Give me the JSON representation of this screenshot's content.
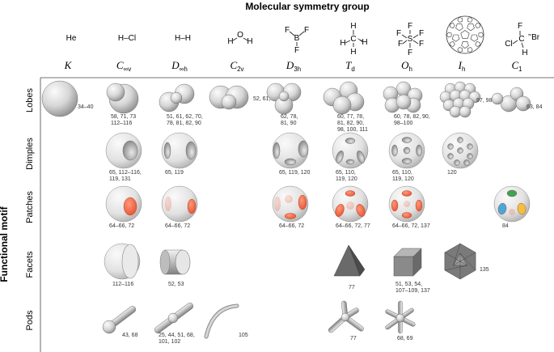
{
  "title": "Molecular symmetry group",
  "y_axis_label": "Functional motif",
  "molecules": [
    {
      "id": "K",
      "formula": "He"
    },
    {
      "id": "Cinfv",
      "formula": "H–Cl"
    },
    {
      "id": "Dinfh",
      "formula": "H–H"
    },
    {
      "id": "C2v",
      "formula": "H2O",
      "atoms": [
        "O",
        "H",
        "H"
      ]
    },
    {
      "id": "D3h",
      "formula": "BF3",
      "atoms": [
        "F",
        "B",
        "F",
        "F"
      ]
    },
    {
      "id": "Td",
      "formula": "CH4",
      "atoms": [
        "C",
        "H",
        "H",
        "H",
        "H"
      ]
    },
    {
      "id": "Oh",
      "formula": "SF6",
      "atoms": [
        "S",
        "F",
        "F",
        "F",
        "F",
        "F",
        "F"
      ]
    },
    {
      "id": "Ih",
      "formula": "C60"
    },
    {
      "id": "C1",
      "formula": "CHFClBr",
      "atoms": [
        "C",
        "F",
        "Cl",
        "Br",
        "H"
      ]
    }
  ],
  "groups": [
    {
      "main": "K",
      "sub": ""
    },
    {
      "main": "C",
      "sub": "∞v"
    },
    {
      "main": "D",
      "sub": "∞h"
    },
    {
      "main": "C",
      "sub": "2v"
    },
    {
      "main": "D",
      "sub": "3h"
    },
    {
      "main": "T",
      "sub": "d"
    },
    {
      "main": "O",
      "sub": "h"
    },
    {
      "main": "I",
      "sub": "h"
    },
    {
      "main": "C",
      "sub": "1"
    }
  ],
  "rows": [
    "Lobes",
    "Dimples",
    "Patches",
    "Facets",
    "Pods"
  ],
  "cells": [
    {
      "row": 0,
      "col": 0,
      "motif": "lobes-single",
      "refs": [
        "34–40"
      ]
    },
    {
      "row": 0,
      "col": 1,
      "motif": "lobes-cinfv",
      "refs": [
        "58, 71, 73",
        "112–116"
      ]
    },
    {
      "row": 0,
      "col": 2,
      "motif": "lobes-dinfh",
      "refs": [
        "51, 61, 62, 70,",
        "78, 81, 82, 90"
      ]
    },
    {
      "row": 0,
      "col": 3,
      "motif": "lobes-c2v",
      "refs": [
        "52, 61, 73"
      ]
    },
    {
      "row": 0,
      "col": 4,
      "motif": "lobes-d3h",
      "refs": [
        "62, 78,",
        "81, 90"
      ]
    },
    {
      "row": 0,
      "col": 5,
      "motif": "lobes-td",
      "refs": [
        "60, 77, 78,",
        "81, 82, 90,",
        "98, 100, 111"
      ]
    },
    {
      "row": 0,
      "col": 6,
      "motif": "lobes-oh",
      "refs": [
        "60, 78, 82, 90,",
        "98–100"
      ]
    },
    {
      "row": 0,
      "col": 7,
      "motif": "lobes-ih",
      "refs": [
        "97, 98"
      ]
    },
    {
      "row": 0,
      "col": 8,
      "motif": "lobes-c1",
      "refs": [
        "63, 84"
      ]
    },
    {
      "row": 1,
      "col": 1,
      "motif": "dimples-cinfv",
      "refs": [
        "65, 112–116,",
        "119, 131"
      ]
    },
    {
      "row": 1,
      "col": 2,
      "motif": "dimples-dinfh",
      "refs": [
        "65, 119"
      ]
    },
    {
      "row": 1,
      "col": 4,
      "motif": "dimples-d3h",
      "refs": [
        "65, 119, 120"
      ]
    },
    {
      "row": 1,
      "col": 5,
      "motif": "dimples-td",
      "refs": [
        "65, 110,",
        "119, 120"
      ]
    },
    {
      "row": 1,
      "col": 6,
      "motif": "dimples-oh",
      "refs": [
        "65, 110,",
        "119, 120"
      ]
    },
    {
      "row": 1,
      "col": 7,
      "motif": "dimples-ih",
      "refs": [
        "120"
      ]
    },
    {
      "row": 2,
      "col": 1,
      "motif": "patches-cinfv",
      "refs": [
        "64–66, 72"
      ]
    },
    {
      "row": 2,
      "col": 2,
      "motif": "patches-dinfh",
      "refs": [
        "64–66, 72"
      ]
    },
    {
      "row": 2,
      "col": 4,
      "motif": "patches-d3h",
      "refs": [
        "64–66, 72"
      ]
    },
    {
      "row": 2,
      "col": 5,
      "motif": "patches-td",
      "refs": [
        "64–66, 72, 77"
      ]
    },
    {
      "row": 2,
      "col": 6,
      "motif": "patches-oh",
      "refs": [
        "64–66, 72, 137"
      ]
    },
    {
      "row": 2,
      "col": 8,
      "motif": "patches-c1",
      "refs": [
        "84"
      ]
    },
    {
      "row": 3,
      "col": 1,
      "motif": "facets-cinfv",
      "refs": [
        "112–116"
      ]
    },
    {
      "row": 3,
      "col": 2,
      "motif": "facets-dinfh",
      "refs": [
        "52, 53"
      ]
    },
    {
      "row": 3,
      "col": 5,
      "motif": "facets-td",
      "refs": [
        "77"
      ]
    },
    {
      "row": 3,
      "col": 6,
      "motif": "facets-oh",
      "refs": [
        "51, 53, 54,",
        "107–109, 137"
      ]
    },
    {
      "row": 3,
      "col": 7,
      "motif": "facets-ih",
      "refs": [
        "135"
      ]
    },
    {
      "row": 4,
      "col": 1,
      "motif": "pods-cinfv",
      "refs": [
        "43, 68"
      ]
    },
    {
      "row": 4,
      "col": 2,
      "motif": "pods-dinfh",
      "refs": [
        "25, 44, 51, 68,",
        "101, 102"
      ]
    },
    {
      "row": 4,
      "col": 3,
      "motif": "pods-c2v",
      "refs": [
        "105"
      ]
    },
    {
      "row": 4,
      "col": 5,
      "motif": "pods-td",
      "refs": [
        "77"
      ]
    },
    {
      "row": 4,
      "col": 6,
      "motif": "pods-oh",
      "refs": [
        "68, 69"
      ]
    }
  ],
  "colors": {
    "patch": "#f06a4a",
    "patch_green": "#3aa55a",
    "patch_blue": "#4aa8d8",
    "patch_yellow": "#f0c040",
    "sphere_light": "#f4f4f4",
    "sphere_dark": "#8a8a8a",
    "facet_dark": "#5a5a5a"
  }
}
